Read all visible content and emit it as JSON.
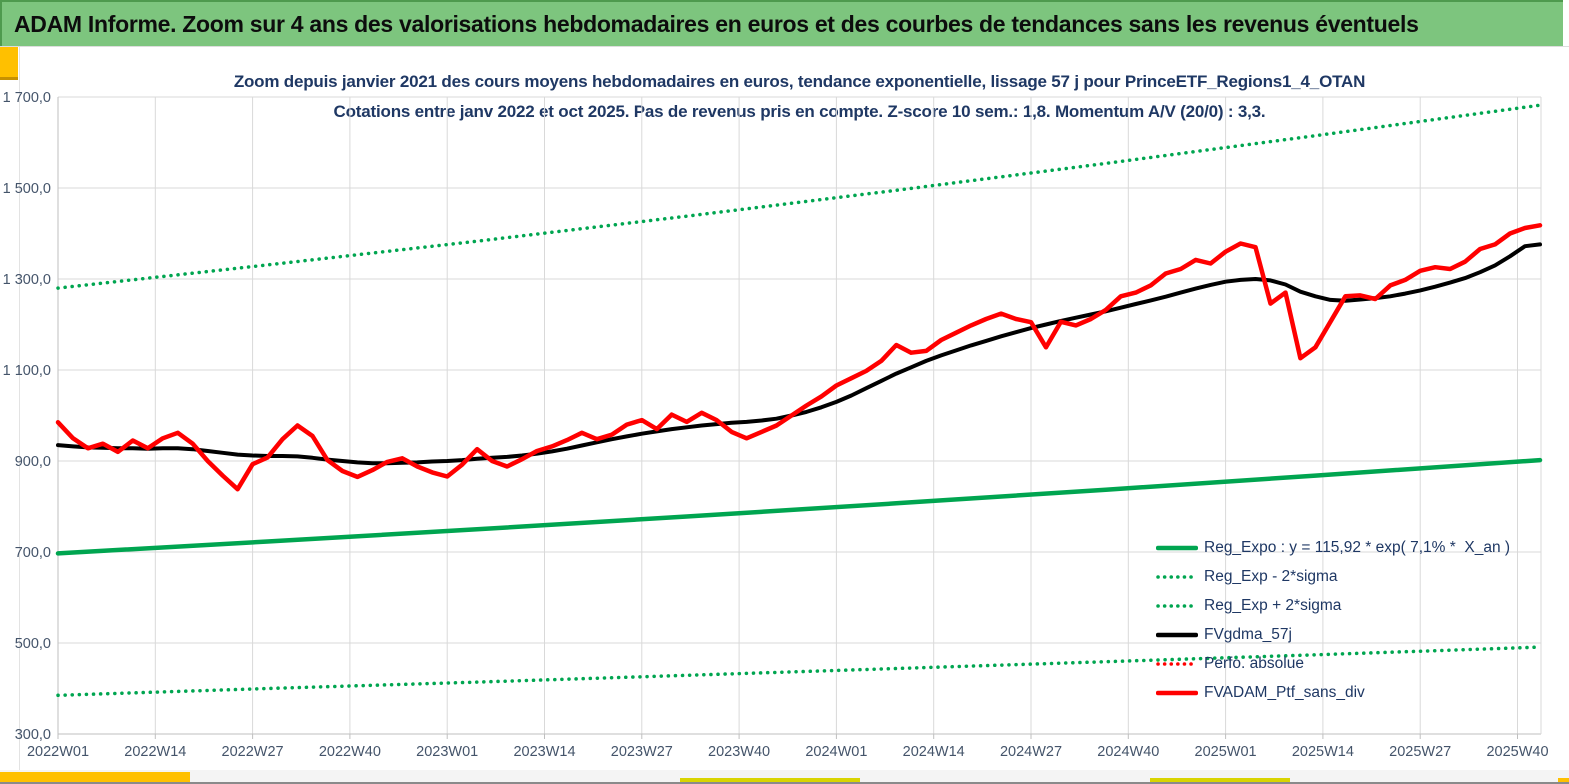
{
  "banner": {
    "text": "ADAM Informe. Zoom sur 4 ans des valorisations hebdomadaires en euros et des courbes de tendances sans les revenus éventuels"
  },
  "chart": {
    "title_line1": "Zoom depuis janvier 2021 des cours moyens hebdomadaires en euros, tendance exponentielle, lissage 57 j pour PrinceETF_Regions1_4_OTAN",
    "title_line2": "Cotations entre janv 2022 et oct 2025. Pas de revenus pris en compte. Z-score 10 sem.: 1,8. Momentum A/V (20/0) : 3,3."
  },
  "style": {
    "banner_green": "#7DC57E",
    "accent_gold": "#FFC000",
    "tab_yellow_green": "#D9D400",
    "title_navy": "#1F3864",
    "tick_color": "#44546A",
    "grid_color": "#D9D9D9",
    "axis_color": "#BFBFBF",
    "series_green": "#00A550",
    "series_red": "#FF0000",
    "series_black": "#000000"
  },
  "chart_data": {
    "type": "line",
    "x_unit": "weeks since 2022W01",
    "grid": true,
    "x_axis": {
      "tick_labels": [
        "2022W01",
        "2022W14",
        "2022W27",
        "2022W40",
        "2023W01",
        "2023W14",
        "2023W27",
        "2023W40",
        "2024W01",
        "2024W14",
        "2024W27",
        "2024W40",
        "2025W01",
        "2025W14",
        "2025W27",
        "2025W40"
      ],
      "tick_weeks": [
        0,
        13,
        26,
        39,
        52,
        65,
        78,
        91,
        104,
        117,
        130,
        143,
        156,
        169,
        182,
        195
      ]
    },
    "y_axis": {
      "tick_labels": [
        "1 700,0",
        "1 500,0",
        "1 300,0",
        "1 100,0",
        "900,0",
        "700,0",
        "500,0",
        "300,0"
      ],
      "tick_values": [
        1700,
        1500,
        1300,
        1100,
        900,
        700,
        500,
        300
      ],
      "range": [
        300,
        1700
      ]
    },
    "legend": {
      "position": "inside-bottom-right",
      "items": [
        {
          "label": "Reg_Expo : y = 115,92 * exp( 7,1% *  X_an )",
          "color": "#00A550",
          "style": "solid"
        },
        {
          "label": "Reg_Exp - 2*sigma",
          "color": "#00A550",
          "style": "dotted"
        },
        {
          "label": "Reg_Exp + 2*sigma",
          "color": "#00A550",
          "style": "dotted"
        },
        {
          "label": "FVgdma_57j",
          "color": "#000000",
          "style": "solid"
        },
        {
          "label": "Perfo. absolue",
          "color": "#FF0000",
          "style": "dotted"
        },
        {
          "label": "FVADAM_Ptf_sans_div",
          "color": "#FF0000",
          "style": "solid"
        }
      ]
    },
    "series": [
      {
        "name": "Reg_Exp - 2*sigma",
        "color": "#00A550",
        "style": "dotted",
        "width": 3.5,
        "points": [
          [
            0,
            385
          ],
          [
            28,
            400
          ],
          [
            56,
            414
          ],
          [
            84,
            429
          ],
          [
            112,
            444
          ],
          [
            140,
            459
          ],
          [
            168,
            474
          ],
          [
            198,
            491
          ]
        ]
      },
      {
        "name": "Reg_Exp + 2*sigma",
        "color": "#00A550",
        "style": "dotted",
        "width": 3.5,
        "points": [
          [
            0,
            1280
          ],
          [
            28,
            1331
          ],
          [
            56,
            1383
          ],
          [
            84,
            1438
          ],
          [
            112,
            1495
          ],
          [
            140,
            1554
          ],
          [
            168,
            1615
          ],
          [
            198,
            1682
          ]
        ]
      },
      {
        "name": "Reg_Expo",
        "color": "#00A550",
        "style": "solid",
        "width": 4.5,
        "points": [
          [
            0,
            697
          ],
          [
            28,
            723
          ],
          [
            56,
            750
          ],
          [
            84,
            778
          ],
          [
            112,
            807
          ],
          [
            140,
            837
          ],
          [
            168,
            868
          ],
          [
            198,
            902
          ]
        ]
      },
      {
        "name": "FVgdma_57j",
        "color": "#000000",
        "style": "solid",
        "width": 4,
        "week_step": 2,
        "values": [
          935,
          932,
          930,
          929,
          928,
          928,
          927,
          928,
          928,
          926,
          922,
          918,
          914,
          912,
          911,
          911,
          910,
          907,
          903,
          900,
          897,
          895,
          895,
          896,
          897,
          899,
          900,
          902,
          905,
          907,
          909,
          912,
          916,
          921,
          927,
          934,
          941,
          948,
          954,
          960,
          965,
          970,
          974,
          978,
          981,
          984,
          986,
          989,
          993,
          1000,
          1008,
          1018,
          1030,
          1044,
          1060,
          1076,
          1092,
          1106,
          1120,
          1132,
          1143,
          1154,
          1164,
          1174,
          1183,
          1192,
          1200,
          1208,
          1215,
          1222,
          1229,
          1237,
          1245,
          1253,
          1261,
          1270,
          1279,
          1287,
          1294,
          1298,
          1300,
          1297,
          1288,
          1272,
          1262,
          1254,
          1252,
          1255,
          1258,
          1262,
          1268,
          1275,
          1283,
          1292,
          1302,
          1315,
          1330,
          1350,
          1372,
          1376
        ]
      },
      {
        "name": "FVADAM_Ptf_sans_div",
        "color": "#FF0000",
        "style": "solid",
        "width": 4.5,
        "week_step": 2,
        "values": [
          985,
          950,
          928,
          938,
          920,
          945,
          928,
          950,
          962,
          938,
          900,
          868,
          838,
          893,
          908,
          948,
          978,
          955,
          902,
          878,
          865,
          880,
          898,
          906,
          888,
          875,
          866,
          892,
          926,
          900,
          888,
          904,
          922,
          932,
          946,
          962,
          948,
          958,
          980,
          990,
          970,
          1002,
          986,
          1006,
          990,
          964,
          950,
          964,
          978,
          1000,
          1022,
          1042,
          1066,
          1082,
          1098,
          1120,
          1155,
          1138,
          1142,
          1166,
          1182,
          1198,
          1212,
          1224,
          1212,
          1205,
          1150,
          1206,
          1198,
          1212,
          1232,
          1262,
          1270,
          1286,
          1312,
          1322,
          1342,
          1334,
          1360,
          1378,
          1370,
          1246,
          1270,
          1126,
          1150,
          1206,
          1262,
          1264,
          1256,
          1286,
          1298,
          1318,
          1326,
          1322,
          1338,
          1366,
          1376,
          1400,
          1412,
          1418
        ]
      }
    ],
    "annotations": {
      "z_score_10w": "1,8",
      "momentum_av_20_0": "3,3",
      "trend_formula": "y = 115,92 * exp( 7,1% * X_an )"
    }
  }
}
